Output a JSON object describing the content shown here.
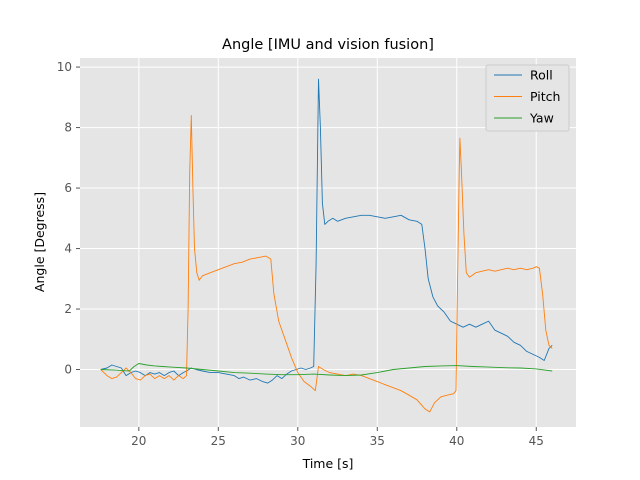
{
  "chart_data": {
    "type": "line",
    "title": "Angle [IMU and vision fusion]",
    "xlabel": "Time [s]",
    "ylabel": "Angle [Degress]",
    "xlim": [
      16.3,
      47.5
    ],
    "ylim": [
      -1.9,
      10.3
    ],
    "xticks": [
      20,
      25,
      30,
      35,
      40,
      45
    ],
    "yticks": [
      0,
      2,
      4,
      6,
      8,
      10
    ],
    "grid": true,
    "legend": "top-right",
    "series": [
      {
        "name": "Roll",
        "color": "#1f77b4",
        "points": [
          [
            17.6,
            0.0
          ],
          [
            18.0,
            0.05
          ],
          [
            18.3,
            0.15
          ],
          [
            18.6,
            0.1
          ],
          [
            18.9,
            0.05
          ],
          [
            19.2,
            -0.2
          ],
          [
            19.5,
            -0.1
          ],
          [
            19.8,
            -0.05
          ],
          [
            20.1,
            -0.1
          ],
          [
            20.4,
            -0.2
          ],
          [
            20.7,
            -0.1
          ],
          [
            21.0,
            -0.15
          ],
          [
            21.3,
            -0.1
          ],
          [
            21.6,
            -0.2
          ],
          [
            21.9,
            -0.1
          ],
          [
            22.2,
            -0.05
          ],
          [
            22.5,
            -0.2
          ],
          [
            22.8,
            -0.1
          ],
          [
            23.0,
            -0.05
          ],
          [
            23.3,
            0.05
          ],
          [
            23.6,
            0.0
          ],
          [
            24.0,
            -0.05
          ],
          [
            24.5,
            -0.1
          ],
          [
            25.0,
            -0.1
          ],
          [
            25.5,
            -0.15
          ],
          [
            26.0,
            -0.2
          ],
          [
            26.3,
            -0.3
          ],
          [
            26.6,
            -0.25
          ],
          [
            27.0,
            -0.35
          ],
          [
            27.4,
            -0.3
          ],
          [
            27.8,
            -0.4
          ],
          [
            28.1,
            -0.45
          ],
          [
            28.4,
            -0.35
          ],
          [
            28.7,
            -0.2
          ],
          [
            29.0,
            -0.3
          ],
          [
            29.3,
            -0.15
          ],
          [
            29.6,
            -0.05
          ],
          [
            29.9,
            0.0
          ],
          [
            30.2,
            0.05
          ],
          [
            30.5,
            0.0
          ],
          [
            30.8,
            0.05
          ],
          [
            31.0,
            0.1
          ],
          [
            31.15,
            3.5
          ],
          [
            31.3,
            9.6
          ],
          [
            31.42,
            8.0
          ],
          [
            31.55,
            5.5
          ],
          [
            31.7,
            4.8
          ],
          [
            31.9,
            4.9
          ],
          [
            32.2,
            5.0
          ],
          [
            32.5,
            4.9
          ],
          [
            33.0,
            5.0
          ],
          [
            33.5,
            5.05
          ],
          [
            34.0,
            5.1
          ],
          [
            34.5,
            5.1
          ],
          [
            35.0,
            5.05
          ],
          [
            35.5,
            5.0
          ],
          [
            36.0,
            5.05
          ],
          [
            36.5,
            5.1
          ],
          [
            37.0,
            4.95
          ],
          [
            37.5,
            4.9
          ],
          [
            37.8,
            4.8
          ],
          [
            38.0,
            4.0
          ],
          [
            38.2,
            3.0
          ],
          [
            38.5,
            2.4
          ],
          [
            38.8,
            2.1
          ],
          [
            39.2,
            1.9
          ],
          [
            39.6,
            1.6
          ],
          [
            40.0,
            1.5
          ],
          [
            40.4,
            1.4
          ],
          [
            40.8,
            1.5
          ],
          [
            41.2,
            1.4
          ],
          [
            41.6,
            1.5
          ],
          [
            42.0,
            1.6
          ],
          [
            42.4,
            1.3
          ],
          [
            42.8,
            1.2
          ],
          [
            43.2,
            1.1
          ],
          [
            43.6,
            0.9
          ],
          [
            44.0,
            0.8
          ],
          [
            44.4,
            0.6
          ],
          [
            44.8,
            0.5
          ],
          [
            45.2,
            0.4
          ],
          [
            45.5,
            0.3
          ],
          [
            45.8,
            0.7
          ],
          [
            46.0,
            0.8
          ]
        ]
      },
      {
        "name": "Pitch",
        "color": "#ff7f0e",
        "points": [
          [
            17.6,
            0.0
          ],
          [
            18.0,
            -0.2
          ],
          [
            18.3,
            -0.3
          ],
          [
            18.6,
            -0.25
          ],
          [
            18.9,
            -0.1
          ],
          [
            19.2,
            0.05
          ],
          [
            19.5,
            -0.1
          ],
          [
            19.8,
            -0.3
          ],
          [
            20.1,
            -0.35
          ],
          [
            20.4,
            -0.2
          ],
          [
            20.7,
            -0.15
          ],
          [
            21.0,
            -0.3
          ],
          [
            21.3,
            -0.2
          ],
          [
            21.6,
            -0.3
          ],
          [
            21.9,
            -0.2
          ],
          [
            22.2,
            -0.35
          ],
          [
            22.5,
            -0.2
          ],
          [
            22.8,
            -0.3
          ],
          [
            23.0,
            -0.2
          ],
          [
            23.1,
            2.0
          ],
          [
            23.2,
            6.5
          ],
          [
            23.3,
            8.4
          ],
          [
            23.4,
            6.0
          ],
          [
            23.5,
            4.0
          ],
          [
            23.65,
            3.2
          ],
          [
            23.8,
            2.95
          ],
          [
            24.0,
            3.1
          ],
          [
            24.5,
            3.2
          ],
          [
            25.0,
            3.3
          ],
          [
            25.5,
            3.4
          ],
          [
            26.0,
            3.5
          ],
          [
            26.5,
            3.55
          ],
          [
            27.0,
            3.65
          ],
          [
            27.5,
            3.7
          ],
          [
            28.0,
            3.75
          ],
          [
            28.3,
            3.65
          ],
          [
            28.5,
            2.5
          ],
          [
            28.8,
            1.6
          ],
          [
            29.2,
            1.0
          ],
          [
            29.6,
            0.4
          ],
          [
            30.0,
            -0.1
          ],
          [
            30.4,
            -0.4
          ],
          [
            30.8,
            -0.55
          ],
          [
            31.1,
            -0.7
          ],
          [
            31.3,
            0.1
          ],
          [
            31.6,
            0.0
          ],
          [
            32.0,
            -0.1
          ],
          [
            32.5,
            -0.15
          ],
          [
            33.0,
            -0.2
          ],
          [
            33.5,
            -0.15
          ],
          [
            34.0,
            -0.2
          ],
          [
            34.5,
            -0.3
          ],
          [
            35.0,
            -0.4
          ],
          [
            35.5,
            -0.5
          ],
          [
            36.0,
            -0.6
          ],
          [
            36.5,
            -0.7
          ],
          [
            37.0,
            -0.85
          ],
          [
            37.5,
            -1.0
          ],
          [
            38.0,
            -1.3
          ],
          [
            38.3,
            -1.4
          ],
          [
            38.6,
            -1.1
          ],
          [
            39.0,
            -0.9
          ],
          [
            39.4,
            -0.85
          ],
          [
            39.8,
            -0.8
          ],
          [
            39.95,
            -0.7
          ],
          [
            40.05,
            3.0
          ],
          [
            40.15,
            6.5
          ],
          [
            40.2,
            7.65
          ],
          [
            40.3,
            6.5
          ],
          [
            40.45,
            4.5
          ],
          [
            40.6,
            3.2
          ],
          [
            40.8,
            3.05
          ],
          [
            41.2,
            3.2
          ],
          [
            41.6,
            3.25
          ],
          [
            42.0,
            3.3
          ],
          [
            42.4,
            3.25
          ],
          [
            42.8,
            3.3
          ],
          [
            43.2,
            3.35
          ],
          [
            43.6,
            3.3
          ],
          [
            44.0,
            3.35
          ],
          [
            44.4,
            3.3
          ],
          [
            44.8,
            3.35
          ],
          [
            45.0,
            3.4
          ],
          [
            45.2,
            3.35
          ],
          [
            45.4,
            2.5
          ],
          [
            45.6,
            1.3
          ],
          [
            45.8,
            0.8
          ],
          [
            46.0,
            0.7
          ]
        ]
      },
      {
        "name": "Yaw",
        "color": "#2ca02c",
        "points": [
          [
            17.6,
            0.0
          ],
          [
            18.5,
            -0.02
          ],
          [
            19.4,
            -0.05
          ],
          [
            19.7,
            0.1
          ],
          [
            20.0,
            0.2
          ],
          [
            20.5,
            0.15
          ],
          [
            21.0,
            0.12
          ],
          [
            21.5,
            0.1
          ],
          [
            22.0,
            0.08
          ],
          [
            23.0,
            0.05
          ],
          [
            24.0,
            0.0
          ],
          [
            25.0,
            -0.05
          ],
          [
            26.0,
            -0.1
          ],
          [
            27.0,
            -0.12
          ],
          [
            28.0,
            -0.15
          ],
          [
            29.0,
            -0.17
          ],
          [
            30.0,
            -0.17
          ],
          [
            31.0,
            -0.15
          ],
          [
            32.0,
            -0.18
          ],
          [
            33.0,
            -0.2
          ],
          [
            34.0,
            -0.18
          ],
          [
            35.0,
            -0.1
          ],
          [
            36.0,
            0.0
          ],
          [
            37.0,
            0.05
          ],
          [
            38.0,
            0.1
          ],
          [
            39.0,
            0.12
          ],
          [
            40.0,
            0.13
          ],
          [
            41.0,
            0.1
          ],
          [
            42.0,
            0.08
          ],
          [
            43.0,
            0.06
          ],
          [
            44.0,
            0.05
          ],
          [
            45.0,
            0.02
          ],
          [
            46.0,
            -0.05
          ]
        ]
      }
    ]
  }
}
